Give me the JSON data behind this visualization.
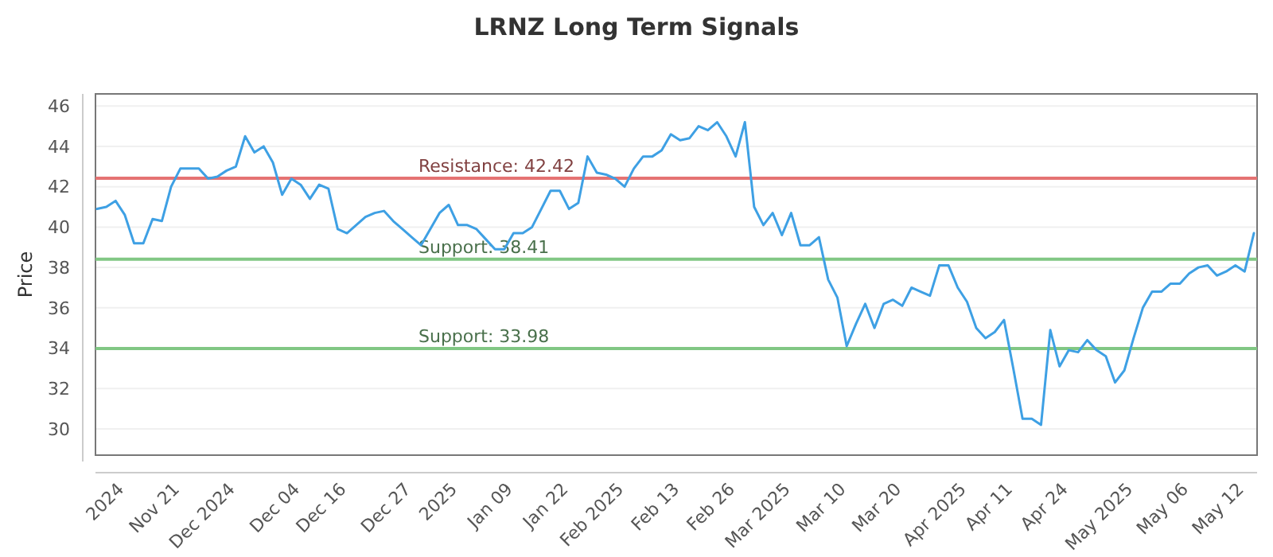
{
  "chart_data": {
    "type": "line",
    "title": "LRNZ Long Term Signals",
    "ylabel": "Price",
    "categories": [
      null,
      null,
      null,
      "2024",
      null,
      null,
      null,
      null,
      null,
      "Nov 21",
      null,
      null,
      null,
      null,
      null,
      "Dec 2024",
      null,
      null,
      null,
      null,
      null,
      null,
      "Dec 04",
      null,
      null,
      null,
      null,
      "Dec 16",
      null,
      null,
      null,
      null,
      null,
      null,
      "Dec 27",
      null,
      null,
      null,
      null,
      "2025",
      null,
      null,
      null,
      null,
      null,
      "Jan 09",
      null,
      null,
      null,
      null,
      null,
      "Jan 22",
      null,
      null,
      null,
      null,
      null,
      "Feb 2025",
      null,
      null,
      null,
      null,
      null,
      "Feb 13",
      null,
      null,
      null,
      null,
      null,
      "Feb 26",
      null,
      null,
      null,
      null,
      null,
      "Mar 2025",
      null,
      null,
      null,
      null,
      null,
      "Mar 10",
      null,
      null,
      null,
      null,
      null,
      "Mar 20",
      null,
      null,
      null,
      null,
      null,
      null,
      "Apr 2025",
      null,
      null,
      null,
      null,
      "Apr 11",
      null,
      null,
      null,
      null,
      null,
      "Apr 24",
      null,
      null,
      null,
      null,
      null,
      null,
      "May 2025",
      null,
      null,
      null,
      null,
      null,
      "May 06",
      null,
      null,
      null,
      null,
      null,
      "May 12",
      null
    ],
    "series": [
      {
        "color": "#3ea0e4",
        "values": [
          40.9,
          41.0,
          41.3,
          40.6,
          39.2,
          39.2,
          40.4,
          40.3,
          42.0,
          42.9,
          42.9,
          42.9,
          42.4,
          42.5,
          42.8,
          43.0,
          44.5,
          43.7,
          44.0,
          43.2,
          41.6,
          42.4,
          42.1,
          41.4,
          42.1,
          41.9,
          39.9,
          39.7,
          40.1,
          40.5,
          40.7,
          40.8,
          40.3,
          39.9,
          39.5,
          39.1,
          39.9,
          40.7,
          41.1,
          40.1,
          40.1,
          39.9,
          39.4,
          38.9,
          38.9,
          39.7,
          39.7,
          40.0,
          40.9,
          41.8,
          41.8,
          40.9,
          41.2,
          43.5,
          42.7,
          42.6,
          42.4,
          42.0,
          42.9,
          43.5,
          43.5,
          43.8,
          44.6,
          44.3,
          44.4,
          45.0,
          44.8,
          45.2,
          44.5,
          43.5,
          45.2,
          41.0,
          40.1,
          40.7,
          39.6,
          40.7,
          39.1,
          39.1,
          39.5,
          37.4,
          36.5,
          34.1,
          35.2,
          36.2,
          35.0,
          36.2,
          36.4,
          36.1,
          37.0,
          36.8,
          36.6,
          38.1,
          38.1,
          37.0,
          36.3,
          35.0,
          34.5,
          34.8,
          35.4,
          33.0,
          30.5,
          30.5,
          30.2,
          34.9,
          33.1,
          33.9,
          33.8,
          34.4,
          33.9,
          33.6,
          32.3,
          32.9,
          34.5,
          36.0,
          36.8,
          36.8,
          37.2,
          37.2,
          37.7,
          38.0,
          38.1,
          37.6,
          37.8,
          38.1,
          37.8,
          39.7
        ]
      }
    ],
    "ylim": [
      28.7,
      46.6
    ],
    "yticks": [
      30,
      32,
      34,
      36,
      38,
      40,
      42,
      44,
      46
    ],
    "grid": "y",
    "line_style": "solid",
    "marker": "none",
    "ref_lines": [
      {
        "axis": "y",
        "value": 42.42,
        "label": "Resistance: 42.42",
        "color": "#e57373"
      },
      {
        "axis": "y",
        "value": 38.41,
        "label": "Support: 38.41",
        "color": "#81c784"
      },
      {
        "axis": "y",
        "value": 33.98,
        "label": "Support: 33.98",
        "color": "#81c784"
      }
    ]
  }
}
